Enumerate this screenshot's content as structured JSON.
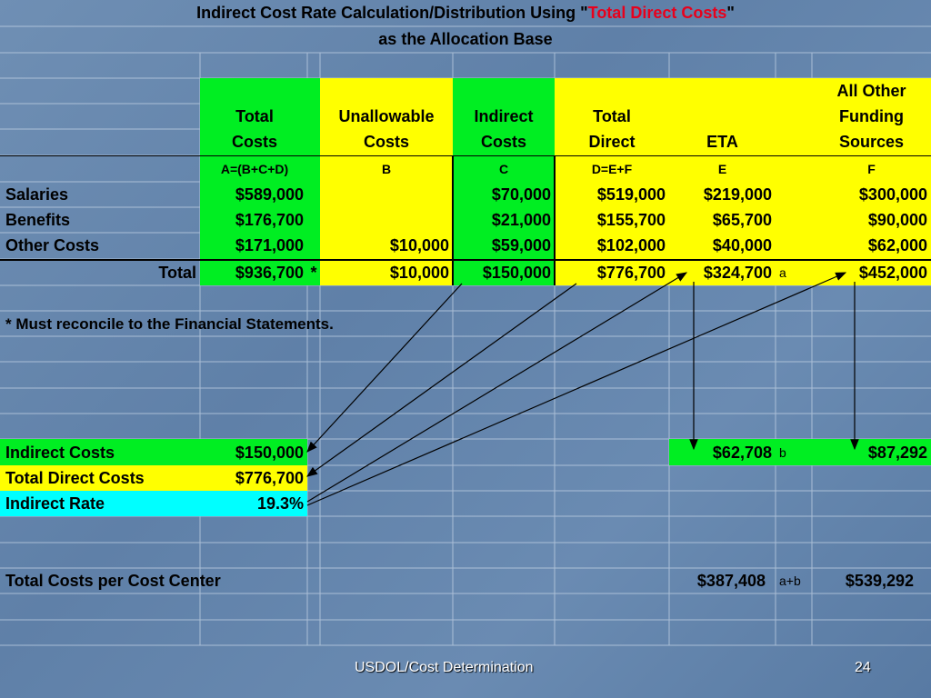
{
  "title": {
    "line1_prefix": "Indirect Cost Rate Calculation/Distribution Using \"",
    "line1_highlight": "Total Direct Costs",
    "line1_suffix": "\"",
    "line2": "as the Allocation Base"
  },
  "headers": {
    "total_costs": [
      "Total",
      "Costs"
    ],
    "unallowable_costs": [
      "Unallowable",
      "Costs"
    ],
    "indirect_costs": [
      "Indirect",
      "Costs"
    ],
    "total_direct": [
      "Total",
      "Direct"
    ],
    "eta": "ETA",
    "all_other": [
      "All Other",
      "Funding",
      "Sources"
    ]
  },
  "formulas": {
    "a": "A=(B+C+D)",
    "b": "B",
    "c": "C",
    "d": "D=E+F",
    "e": "E",
    "f": "F"
  },
  "rows": [
    {
      "label": "Salaries",
      "a": "$589,000",
      "b": "",
      "c": "$70,000",
      "d": "$519,000",
      "e": "$219,000",
      "f": "$300,000"
    },
    {
      "label": "Benefits",
      "a": "$176,700",
      "b": "",
      "c": "$21,000",
      "d": "$155,700",
      "e": "$65,700",
      "f": "$90,000"
    },
    {
      "label": "Other Costs",
      "a": "$171,000",
      "b": "$10,000",
      "c": "$59,000",
      "d": "$102,000",
      "e": "$40,000",
      "f": "$62,000"
    }
  ],
  "total_row": {
    "label": "Total",
    "a": "$936,700",
    "a_mark": "*",
    "b": "$10,000",
    "c": "$150,000",
    "d": "$776,700",
    "e": "$324,700",
    "e_note": "a",
    "f": "$452,000"
  },
  "footnote": "*  Must reconcile to the Financial Statements.",
  "rate_block": {
    "indirect_costs_label": "Indirect Costs",
    "indirect_costs_value": "$150,000",
    "total_direct_label": "Total Direct Costs",
    "total_direct_value": "$776,700",
    "rate_label": "Indirect Rate",
    "rate_value": "19.3%",
    "eta_allocation": "$62,708",
    "eta_allocation_note": "b",
    "other_allocation": "$87,292"
  },
  "cost_center": {
    "label": "Total Costs per Cost Center",
    "eta_value": "$387,408",
    "eta_note": "a+b",
    "other_value": "$539,292"
  },
  "footer": {
    "left": "USDOL/Cost Determination",
    "page": "24"
  },
  "colors": {
    "green": "#00ee22",
    "yellow": "#ffff00",
    "cyan": "#00ffff",
    "highlight_red": "#e8001c"
  }
}
